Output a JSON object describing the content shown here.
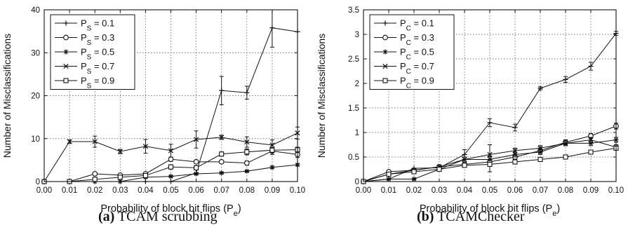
{
  "figure": {
    "captions": [
      {
        "label": "(a)",
        "text": "TCAM scrubbing"
      },
      {
        "label": "(b)",
        "text": "TCAMChecker"
      }
    ]
  },
  "chart_data": [
    {
      "type": "line",
      "ylabel": "Number of Misclassifications",
      "xlabel_main": "Probability of block bit flips (P",
      "xlabel_sub": "e",
      "xlabel_close": ")",
      "x": [
        0.0,
        0.01,
        0.02,
        0.03,
        0.04,
        0.05,
        0.06,
        0.07,
        0.08,
        0.09,
        0.1
      ],
      "xticks": [
        "0.00",
        "0.01",
        "0.02",
        "0.03",
        "0.04",
        "0.05",
        "0.06",
        "0.07",
        "0.08",
        "0.09",
        "0.10"
      ],
      "ylim": [
        0,
        40
      ],
      "yticks": [
        0,
        10,
        20,
        30,
        40
      ],
      "grid": true,
      "legend_position": "top-left",
      "series": [
        {
          "name_main": "P",
          "name_sub": "S",
          "name_rest": " = 0.1",
          "marker": "plus",
          "values": [
            0,
            0,
            0,
            0,
            0,
            0,
            2,
            21.2,
            20.7,
            35.8,
            34.9
          ],
          "errors": [
            0,
            0,
            0,
            0,
            0,
            0,
            0,
            3.3,
            1.5,
            4.5,
            0
          ]
        },
        {
          "name_main": "P",
          "name_sub": "S",
          "name_rest": " = 0.3",
          "marker": "circle",
          "values": [
            0,
            0,
            1.8,
            1.5,
            1.8,
            5.2,
            4.6,
            4.6,
            4.3,
            7.1,
            6.3
          ],
          "errors": [
            0,
            0,
            0.3,
            0.3,
            0.3,
            0.5,
            0.4,
            0.4,
            0.5,
            0.8,
            0.7
          ]
        },
        {
          "name_main": "P",
          "name_sub": "S",
          "name_rest": " = 0.5",
          "marker": "star",
          "values": [
            0,
            0,
            0,
            0,
            1.0,
            1.2,
            1.8,
            2.0,
            2.4,
            3.3,
            3.9
          ],
          "errors": [
            0,
            0,
            0,
            0,
            0.2,
            0.2,
            0.2,
            0.2,
            0.2,
            0.3,
            0.3
          ]
        },
        {
          "name_main": "P",
          "name_sub": "S",
          "name_rest": " = 0.7",
          "marker": "cross",
          "values": [
            0,
            9.3,
            9.3,
            7.0,
            8.2,
            7.2,
            9.8,
            10.3,
            9.2,
            8.5,
            11.3
          ],
          "errors": [
            0,
            0.4,
            1.3,
            0.5,
            1.6,
            1.5,
            2.0,
            0.5,
            1.2,
            1.2,
            1.4
          ]
        },
        {
          "name_main": "P",
          "name_sub": "S",
          "name_rest": " = 0.9",
          "marker": "square",
          "values": [
            0,
            0,
            0.5,
            1.0,
            1.4,
            3.4,
            3.2,
            6.4,
            6.9,
            7.3,
            7.4
          ],
          "errors": [
            0,
            0,
            0.3,
            0.4,
            0.4,
            0.5,
            0.5,
            0.5,
            0.7,
            0.6,
            0.6
          ]
        }
      ]
    },
    {
      "type": "line",
      "ylabel": "Number of Misclassifications",
      "xlabel_main": "Probability of block bit flips (P",
      "xlabel_sub": "e",
      "xlabel_close": ")",
      "x": [
        0.0,
        0.01,
        0.02,
        0.03,
        0.04,
        0.05,
        0.06,
        0.07,
        0.08,
        0.09,
        0.1
      ],
      "xticks": [
        "0.00",
        "0.01",
        "0.02",
        "0.03",
        "0.04",
        "0.05",
        "0.06",
        "0.07",
        "0.08",
        "0.09",
        "0.10"
      ],
      "ylim": [
        0,
        3.5
      ],
      "yticks": [
        0,
        0.5,
        1,
        1.5,
        2,
        2.5,
        3,
        3.5
      ],
      "yticklabels": [
        "0",
        "0.5",
        "1",
        "1.5",
        "2",
        "2.5",
        "3",
        "3.5"
      ],
      "grid": true,
      "legend_position": "top-left",
      "series": [
        {
          "name_main": "P",
          "name_sub": "C",
          "name_rest": " = 0.1",
          "marker": "plus",
          "values": [
            0,
            0.05,
            0.27,
            0.28,
            0.55,
            1.2,
            1.1,
            1.9,
            2.08,
            2.35,
            3.02
          ],
          "errors": [
            0,
            0,
            0,
            0,
            0.1,
            0.08,
            0.07,
            0.03,
            0.06,
            0.08,
            0.04
          ]
        },
        {
          "name_main": "P",
          "name_sub": "C",
          "name_rest": " = 0.3",
          "marker": "circle",
          "values": [
            0,
            0.2,
            0.23,
            0.3,
            0.35,
            0.4,
            0.5,
            0.63,
            0.8,
            0.93,
            1.13
          ],
          "errors": [
            0,
            0.03,
            0.03,
            0.03,
            0.05,
            0.05,
            0.05,
            0.05,
            0.05,
            0.05,
            0.06
          ]
        },
        {
          "name_main": "P",
          "name_sub": "C",
          "name_rest": " = 0.5",
          "marker": "star",
          "values": [
            0,
            0.05,
            0.05,
            0.25,
            0.45,
            0.45,
            0.55,
            0.6,
            0.78,
            0.78,
            0.85
          ],
          "errors": [
            0,
            0.02,
            0.02,
            0.03,
            0.05,
            0.06,
            0.05,
            0.05,
            0.05,
            0.05,
            0.05
          ]
        },
        {
          "name_main": "P",
          "name_sub": "C",
          "name_rest": " = 0.7",
          "marker": "cross",
          "values": [
            0,
            0.15,
            0.23,
            0.3,
            0.45,
            0.55,
            0.63,
            0.68,
            0.78,
            0.85,
            0.7
          ],
          "errors": [
            0,
            0.03,
            0.03,
            0.04,
            0.05,
            0.2,
            0.05,
            0.05,
            0.05,
            0.05,
            0.05
          ]
        },
        {
          "name_main": "P",
          "name_sub": "C",
          "name_rest": " = 0.9",
          "marker": "square",
          "values": [
            0,
            0.15,
            0.2,
            0.25,
            0.33,
            0.35,
            0.4,
            0.45,
            0.5,
            0.6,
            0.68
          ],
          "errors": [
            0,
            0.03,
            0.03,
            0.03,
            0.04,
            0.15,
            0.04,
            0.04,
            0.04,
            0.04,
            0.04
          ]
        }
      ]
    }
  ]
}
